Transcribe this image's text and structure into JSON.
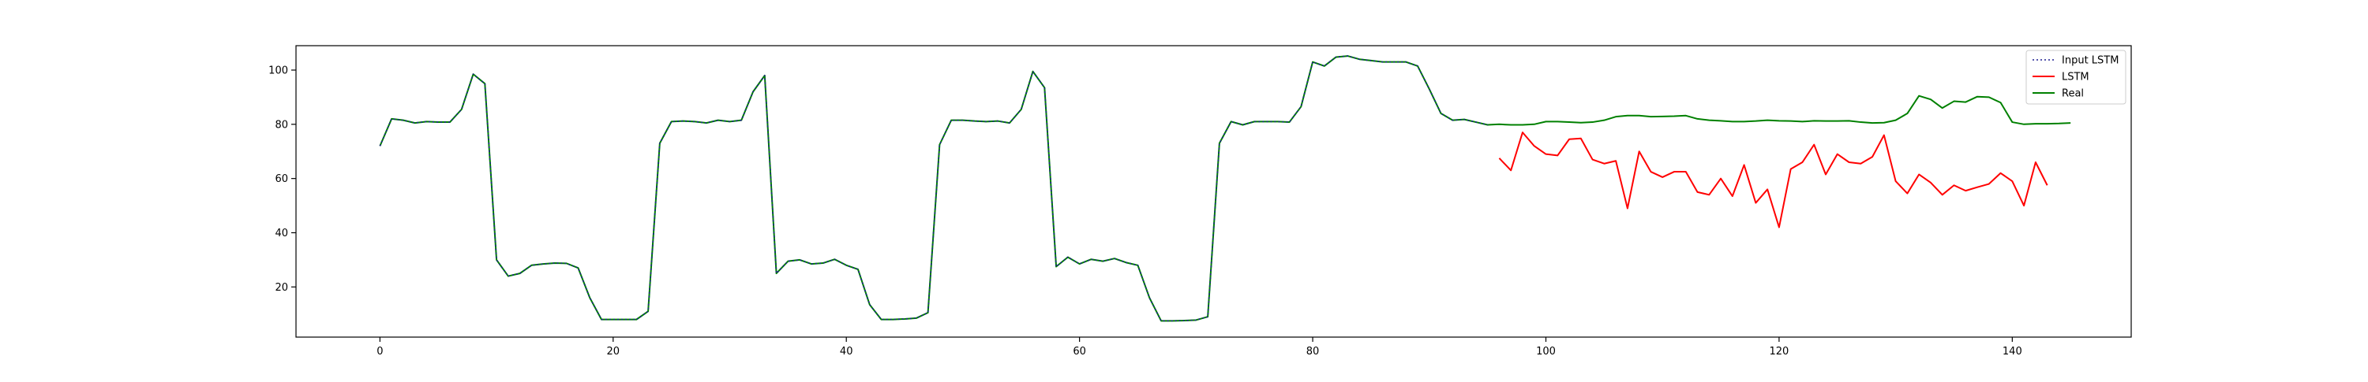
{
  "chart_data": {
    "type": "line",
    "title": "",
    "xlabel": "",
    "ylabel": "",
    "xlim": [
      -7.2,
      150.2
    ],
    "ylim": [
      1.5,
      109.0
    ],
    "xticks": [
      0,
      20,
      40,
      60,
      80,
      100,
      120,
      140
    ],
    "yticks": [
      20,
      40,
      60,
      80,
      100
    ],
    "grid": false,
    "legend": {
      "placement": "top-right",
      "entries": [
        "Input LSTM",
        "LSTM",
        "Real"
      ]
    },
    "series": [
      {
        "name": "Input LSTM",
        "color": "#1f1f8f",
        "line_style": "dotted",
        "x_start": 0,
        "values": [
          72,
          82,
          81.5,
          80.5,
          81,
          80.8,
          80.8,
          85.5,
          98.5,
          95,
          30,
          24,
          25,
          28,
          28.5,
          28.8,
          28.7,
          27,
          16,
          8,
          8,
          8,
          8,
          11,
          73,
          81,
          81.2,
          81,
          80.5,
          81.5,
          81,
          81.5,
          92,
          98,
          25,
          29.5,
          30,
          28.5,
          28.8,
          30.2,
          28,
          26.5,
          13.5,
          8,
          8,
          8.2,
          8.5,
          10.5,
          72.5,
          81.5,
          81.5,
          81.2,
          81,
          81.2,
          80.5,
          85.5,
          99.5,
          93.5,
          27.5,
          31,
          28.5,
          30.2,
          29.5,
          30.5,
          29,
          28,
          16,
          7.5,
          7.5,
          7.6,
          7.8,
          9,
          73,
          81,
          79.8,
          81,
          81,
          81,
          80.8,
          86.5,
          103,
          101.5,
          104.8,
          105.2,
          104,
          103.5,
          103,
          103,
          103,
          101.5,
          93,
          84,
          81.5,
          81.8,
          80.8,
          79.8
        ]
      },
      {
        "name": "LSTM",
        "color": "#ff0000",
        "line_style": "solid",
        "x_start": 96,
        "values": [
          67.5,
          63,
          77,
          72,
          69,
          68.5,
          74.5,
          74.8,
          67,
          65.5,
          66.5,
          49,
          70,
          62.5,
          60.5,
          62.5,
          62.5,
          55,
          54,
          60,
          53.5,
          65,
          51,
          56,
          42,
          63.5,
          66,
          72.5,
          61.5,
          69,
          66,
          65.5,
          68,
          76,
          59,
          54.5,
          61.5,
          58.5,
          54,
          57.5,
          55.5,
          56.8,
          58,
          62,
          59,
          50,
          66,
          57.5
        ]
      },
      {
        "name": "Real",
        "color": "#008000",
        "line_style": "solid",
        "x_start": 0,
        "values": [
          72,
          82,
          81.5,
          80.5,
          81,
          80.8,
          80.8,
          85.5,
          98.5,
          95,
          30,
          24,
          25,
          28,
          28.5,
          28.8,
          28.7,
          27,
          16,
          8,
          8,
          8,
          8,
          11,
          73,
          81,
          81.2,
          81,
          80.5,
          81.5,
          81,
          81.5,
          92,
          98,
          25,
          29.5,
          30,
          28.5,
          28.8,
          30.2,
          28,
          26.5,
          13.5,
          8,
          8,
          8.2,
          8.5,
          10.5,
          72.5,
          81.5,
          81.5,
          81.2,
          81,
          81.2,
          80.5,
          85.5,
          99.5,
          93.5,
          27.5,
          31,
          28.5,
          30.2,
          29.5,
          30.5,
          29,
          28,
          16,
          7.5,
          7.5,
          7.6,
          7.8,
          9,
          73,
          81,
          79.8,
          81,
          81,
          81,
          80.8,
          86.5,
          103,
          101.5,
          104.8,
          105.2,
          104,
          103.5,
          103,
          103,
          103,
          101.5,
          93,
          84,
          81.5,
          81.8,
          80.8,
          79.8,
          80,
          79.8,
          79.8,
          80,
          81,
          81,
          80.8,
          80.6,
          80.8,
          81.5,
          82.8,
          83.2,
          83.2,
          82.8,
          82.9,
          83,
          83.2,
          82,
          81.5,
          81.3,
          81,
          81,
          81.2,
          81.5,
          81.3,
          81.2,
          81,
          81.3,
          81.2,
          81.2,
          81.3,
          80.8,
          80.5,
          80.6,
          81.5,
          84,
          90.5,
          89.2,
          86,
          88.5,
          88.2,
          90.2,
          90,
          88,
          80.8,
          80,
          80.2,
          80.2,
          80.3,
          80.5
        ]
      }
    ]
  }
}
